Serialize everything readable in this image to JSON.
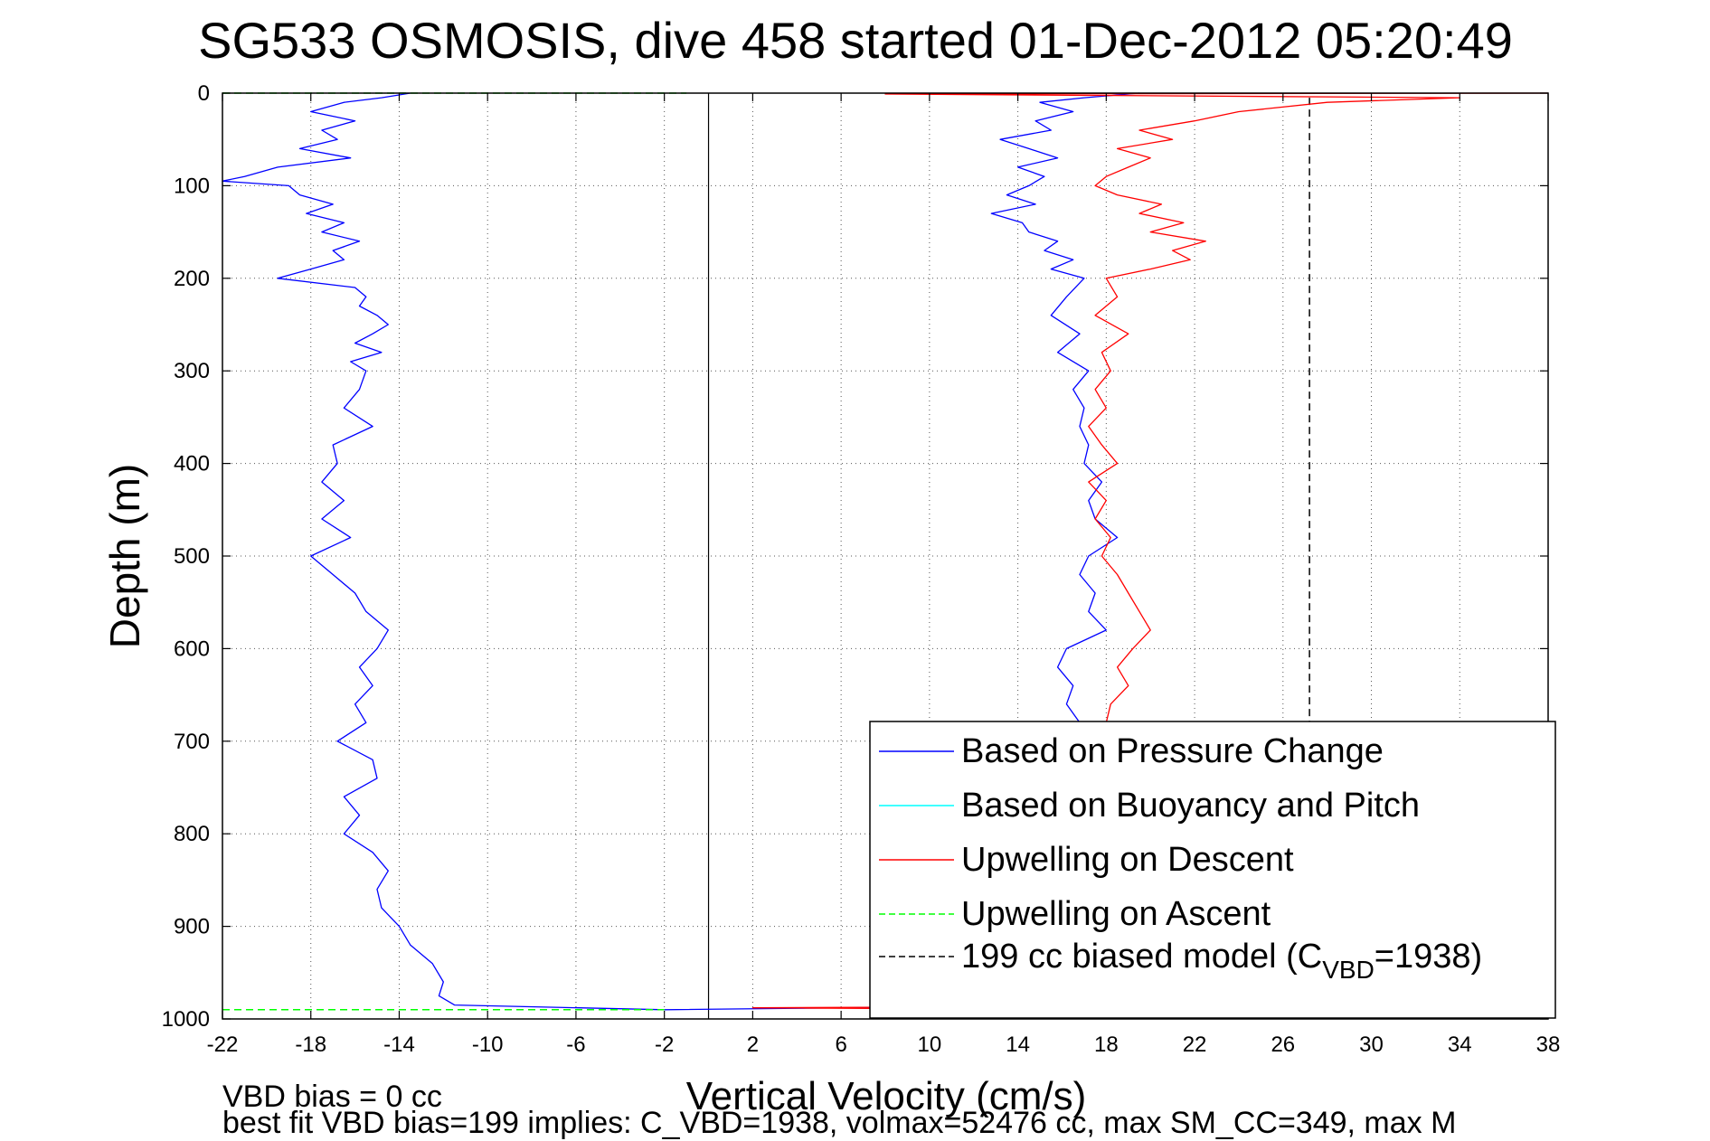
{
  "chart_data": {
    "type": "line",
    "title": "SG533 OSMOSIS, dive 458 started 01-Dec-2012 05:20:49",
    "xlabel": "Vertical Velocity (cm/s)",
    "ylabel": "Depth (m)",
    "xlim": [
      -22,
      38
    ],
    "ylim": [
      1000,
      0
    ],
    "y_reversed": true,
    "grid": true,
    "legend_position": "bottom-right",
    "x_ticks": [
      "-22",
      "-18",
      "-14",
      "-10",
      "-6",
      "-2",
      "2",
      "6",
      "10",
      "14",
      "18",
      "22",
      "26",
      "30",
      "34",
      "38"
    ],
    "y_ticks": [
      "0",
      "100",
      "200",
      "300",
      "400",
      "500",
      "600",
      "700",
      "800",
      "900",
      "1000"
    ],
    "zero_line_x": 0,
    "series": [
      {
        "name": "Based on Pressure Change",
        "color": "#0000ff",
        "dash": "solid",
        "segments": [
          {
            "depth": [
              0,
              5,
              10,
              20,
              30,
              40,
              50,
              60,
              70,
              80,
              90,
              95,
              100,
              110,
              120,
              130,
              140,
              150,
              160,
              170,
              180,
              190,
              200,
              210,
              220,
              230,
              240,
              250,
              260,
              270,
              280,
              290,
              300,
              320,
              340,
              360,
              380,
              400,
              420,
              440,
              460,
              480,
              500,
              520,
              540,
              560,
              580,
              600,
              620,
              640,
              660,
              680,
              700,
              720,
              740,
              760,
              780,
              800,
              820,
              840,
              860,
              880,
              900,
              920,
              940,
              960,
              975,
              985,
              990
            ],
            "velocity": [
              -13.5,
              -14.8,
              -16.5,
              -18,
              -16,
              -17.5,
              -16.8,
              -18.5,
              -16.2,
              -19.5,
              -21,
              -22,
              -19,
              -18.5,
              -17,
              -18.2,
              -16.5,
              -17.5,
              -15.8,
              -17,
              -16.5,
              -18,
              -19.5,
              -16,
              -15.5,
              -15.8,
              -15,
              -14.5,
              -15.2,
              -16,
              -14.8,
              -16.2,
              -15.5,
              -15.8,
              -16.5,
              -15.2,
              -17,
              -16.8,
              -17.5,
              -16.5,
              -17.5,
              -16.2,
              -18,
              -17,
              -16,
              -15.5,
              -14.5,
              -15,
              -15.8,
              -15.2,
              -16,
              -15.5,
              -16.8,
              -15.2,
              -15,
              -16.5,
              -15.8,
              -16.5,
              -15.2,
              -14.5,
              -15,
              -14.8,
              -14,
              -13.5,
              -12.5,
              -12,
              -12.2,
              -11.5,
              -2
            ]
          },
          {
            "depth": [
              0,
              5,
              10,
              20,
              30,
              40,
              50,
              60,
              70,
              80,
              90,
              100,
              110,
              120,
              130,
              140,
              150,
              160,
              170,
              180,
              190,
              200,
              220,
              240,
              260,
              280,
              300,
              320,
              340,
              360,
              380,
              400,
              420,
              440,
              460,
              480,
              500,
              520,
              540,
              560,
              580,
              600,
              620,
              640,
              660,
              680
            ],
            "velocity": [
              19.5,
              17,
              15,
              16.5,
              14.8,
              15.5,
              13.2,
              14.5,
              15.8,
              14,
              15.2,
              14.5,
              13.5,
              14.8,
              12.8,
              14.2,
              14.5,
              15.8,
              15.2,
              16.5,
              15.5,
              17,
              16.2,
              15.5,
              16.8,
              15.8,
              17.2,
              16.5,
              17,
              16.8,
              17.2,
              17,
              17.8,
              17.2,
              17.5,
              18.5,
              17.2,
              16.8,
              17.5,
              17.2,
              18,
              16.2,
              15.8,
              16.5,
              16.2,
              16.8
            ]
          },
          {
            "depth": [
              990,
              988,
              987
            ],
            "velocity": [
              -2,
              6,
              11.5
            ]
          }
        ]
      },
      {
        "name": "Based on Buoyancy and Pitch",
        "color": "#00ffff",
        "dash": "solid",
        "segments": []
      },
      {
        "name": "Upwelling on Descent",
        "color": "#ff0000",
        "dash": "solid",
        "segments": [
          {
            "depth": [
              0,
              1,
              5,
              10,
              20,
              30,
              40,
              50,
              60,
              70,
              80,
              90,
              100,
              110,
              120,
              130,
              140,
              150,
              160,
              170,
              180,
              190,
              200,
              220,
              240,
              260,
              280,
              300,
              320,
              340,
              360,
              380,
              400,
              420,
              440,
              460,
              480,
              500,
              520,
              540,
              560,
              580,
              600,
              620,
              640,
              660,
              680
            ],
            "velocity": [
              38,
              8,
              34,
              28,
              24,
              22,
              19.5,
              21,
              18.5,
              20,
              19,
              18,
              17.5,
              18.5,
              20.5,
              19.5,
              21.5,
              20,
              22.5,
              21,
              21.8,
              20,
              18,
              18.5,
              17.5,
              19,
              17.8,
              18.2,
              17.5,
              18,
              17.2,
              17.8,
              18.5,
              17.2,
              18,
              17.5,
              18.2,
              17.8,
              18.5,
              19,
              19.5,
              20,
              19.2,
              18.5,
              19,
              18.2,
              18
            ]
          },
          {
            "depth": [
              987,
              988,
              990
            ],
            "velocity": [
              11.5,
              2,
              19.5
            ]
          }
        ]
      },
      {
        "name": "Upwelling on Ascent",
        "color": "#00ff00",
        "dash": "dashed",
        "segments": [
          {
            "depth": [
              0,
              0
            ],
            "velocity": [
              -22,
              -1
            ]
          },
          {
            "depth": [
              990,
              990
            ],
            "velocity": [
              -22,
              -2
            ]
          }
        ]
      },
      {
        "name": "199 cc biased model (C",
        "name_sub": "VBD",
        "name_suffix": "=1938)",
        "color": "#000000",
        "dash": "dashed",
        "segments": [
          {
            "depth": [
              5,
              1000
            ],
            "velocity": [
              27.2,
              27.2
            ]
          }
        ]
      }
    ]
  },
  "footer": {
    "line1": "VBD bias = 0 cc",
    "line2": "best fit VBD bias=199 implies: C_VBD=1938, volmax=52476 cc, max SM_CC=349, max M"
  }
}
